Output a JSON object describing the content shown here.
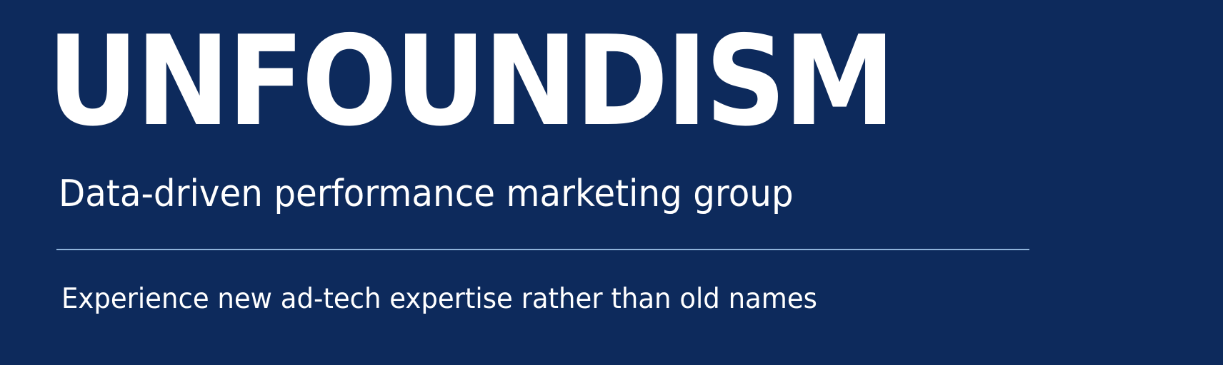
{
  "banner": {
    "brand_name": "UNFOUNDISM",
    "tagline": "Data-driven performance marketing group",
    "subline": "Experience new ad-tech expertise rather than old names"
  },
  "colors": {
    "background": "#0d2a5c",
    "text": "#ffffff",
    "divider": "#8fb3da"
  }
}
